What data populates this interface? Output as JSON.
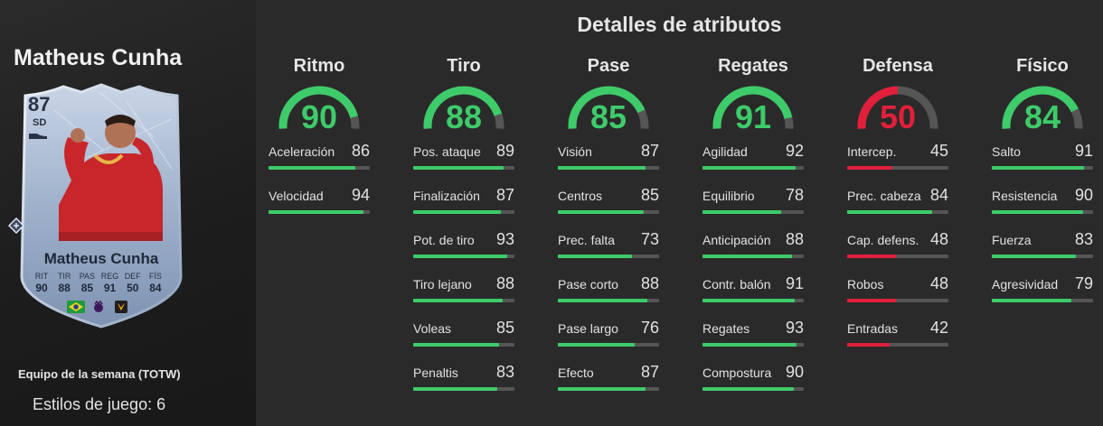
{
  "player": {
    "name": "Matheus Cunha",
    "program": "Equipo de la semana (TOTW)",
    "playstyles": "Estilos de juego: 6"
  },
  "card": {
    "rating": "87",
    "position": "SD",
    "name": "Matheus Cunha",
    "stats": [
      {
        "label": "RIT",
        "value": "90"
      },
      {
        "label": "TIR",
        "value": "88"
      },
      {
        "label": "PAS",
        "value": "85"
      },
      {
        "label": "REG",
        "value": "91"
      },
      {
        "label": "DEF",
        "value": "50"
      },
      {
        "label": "FÍS",
        "value": "84"
      }
    ],
    "badges": [
      "brazil-flag-icon",
      "premier-league-icon",
      "wolves-crest-icon"
    ]
  },
  "title": "Detalles de atributos",
  "colors": {
    "high": "#3ecb6a",
    "low": "#e21f3b",
    "track": "#555555"
  },
  "categories": [
    {
      "name": "Ritmo",
      "value": 90,
      "stats": [
        {
          "label": "Aceleración",
          "value": 86
        },
        {
          "label": "Velocidad",
          "value": 94
        }
      ]
    },
    {
      "name": "Tiro",
      "value": 88,
      "stats": [
        {
          "label": "Pos. ataque",
          "value": 89
        },
        {
          "label": "Finalización",
          "value": 87
        },
        {
          "label": "Pot. de tiro",
          "value": 93
        },
        {
          "label": "Tiro lejano",
          "value": 88
        },
        {
          "label": "Voleas",
          "value": 85
        },
        {
          "label": "Penaltis",
          "value": 83
        }
      ]
    },
    {
      "name": "Pase",
      "value": 85,
      "stats": [
        {
          "label": "Visión",
          "value": 87
        },
        {
          "label": "Centros",
          "value": 85
        },
        {
          "label": "Prec. falta",
          "value": 73
        },
        {
          "label": "Pase corto",
          "value": 88
        },
        {
          "label": "Pase largo",
          "value": 76
        },
        {
          "label": "Efecto",
          "value": 87
        }
      ]
    },
    {
      "name": "Regates",
      "value": 91,
      "stats": [
        {
          "label": "Agilidad",
          "value": 92
        },
        {
          "label": "Equilibrio",
          "value": 78
        },
        {
          "label": "Anticipación",
          "value": 88
        },
        {
          "label": "Contr. balón",
          "value": 91
        },
        {
          "label": "Regates",
          "value": 93
        },
        {
          "label": "Compostura",
          "value": 90
        }
      ]
    },
    {
      "name": "Defensa",
      "value": 50,
      "stats": [
        {
          "label": "Intercep.",
          "value": 45
        },
        {
          "label": "Prec. cabeza",
          "value": 84
        },
        {
          "label": "Cap. defens.",
          "value": 48
        },
        {
          "label": "Robos",
          "value": 48
        },
        {
          "label": "Entradas",
          "value": 42
        }
      ]
    },
    {
      "name": "Físico",
      "value": 84,
      "stats": [
        {
          "label": "Salto",
          "value": 91
        },
        {
          "label": "Resistencia",
          "value": 90
        },
        {
          "label": "Fuerza",
          "value": 83
        },
        {
          "label": "Agresividad",
          "value": 79
        }
      ]
    }
  ]
}
